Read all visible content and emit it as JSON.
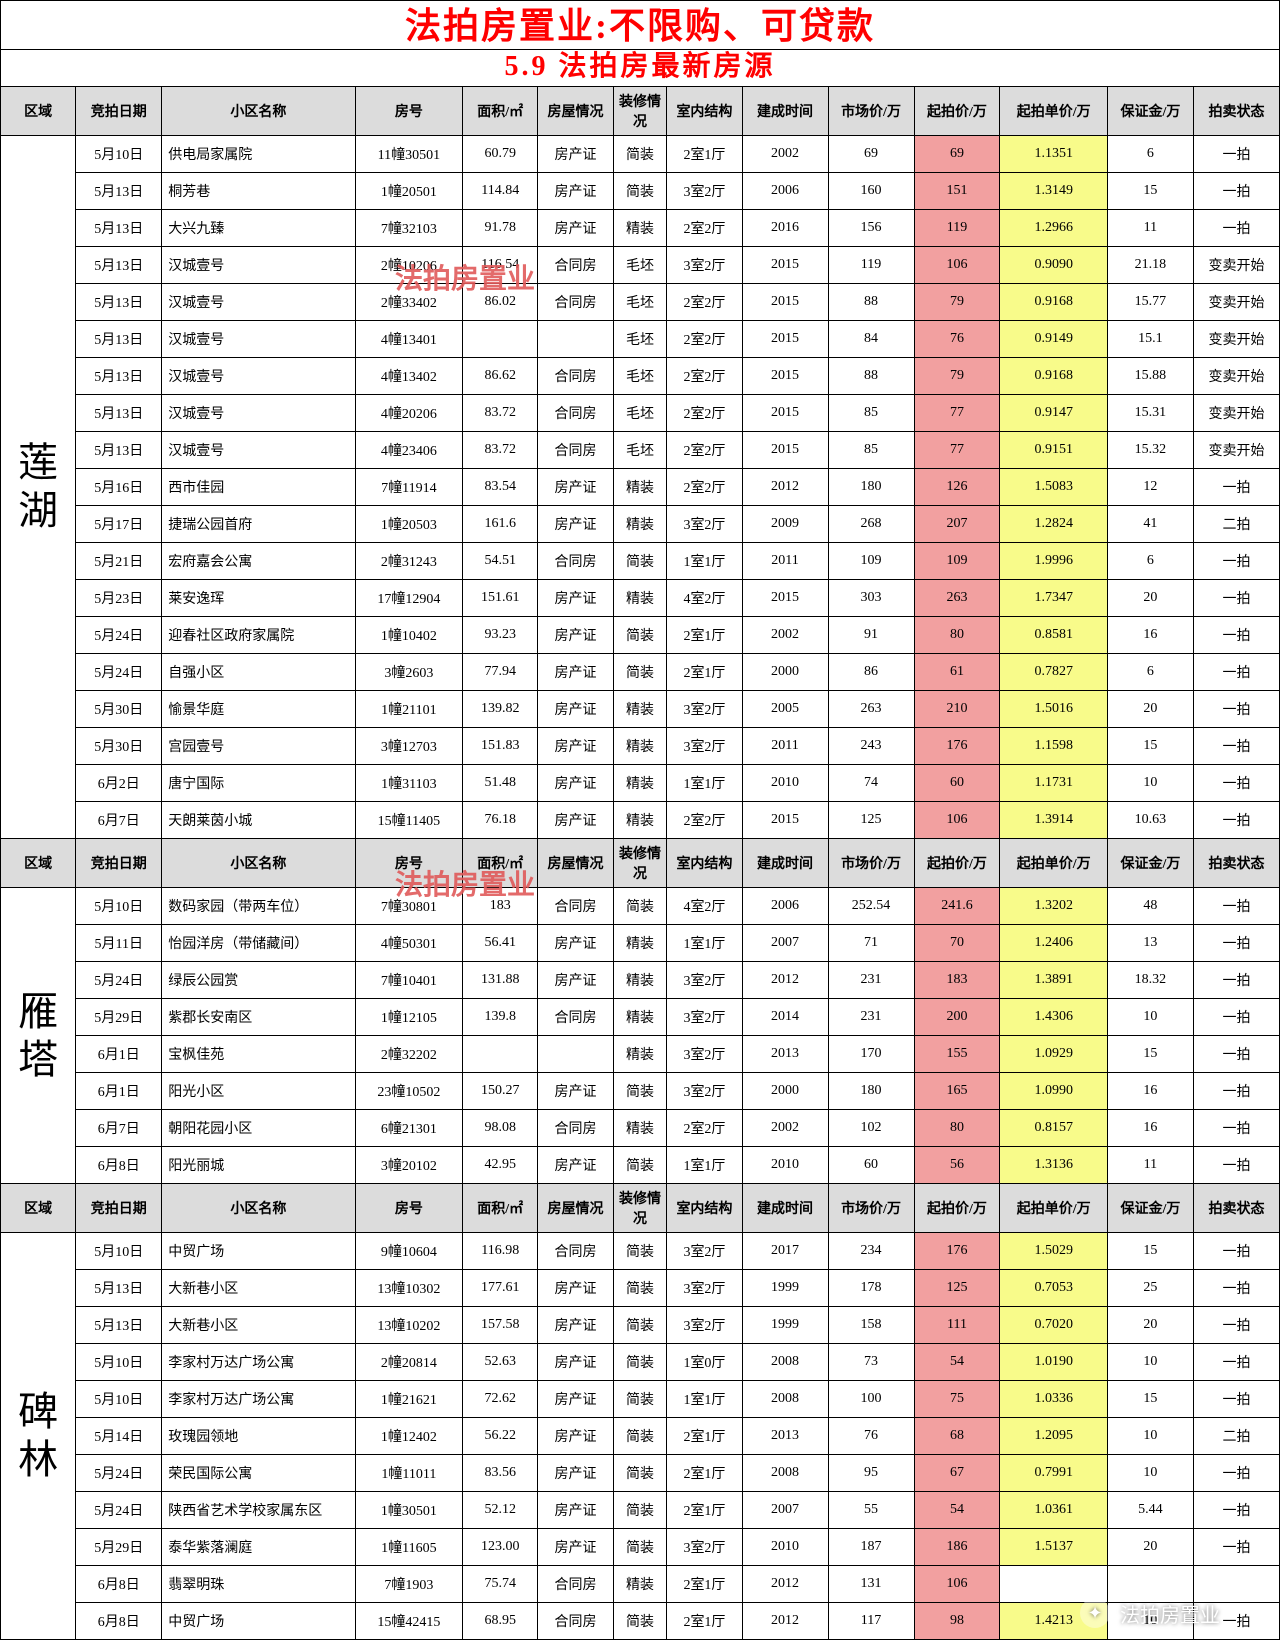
{
  "title": "法拍房置业:不限购、可贷款",
  "subtitle": "5.9  法拍房最新房源",
  "watermark": "法拍房置业",
  "footer": "法拍房置业",
  "colors": {
    "title": "#ff0000",
    "header_bg": "#dcdcdc",
    "highlight_red": "#f2a0a0",
    "highlight_yellow": "#f8fb8a"
  },
  "headers": {
    "region": "区域",
    "date": "竞拍日期",
    "name": "小区名称",
    "room": "房号",
    "area": "面积/㎡",
    "house": "房屋情况",
    "deco": "装修情况",
    "struct": "室内结构",
    "built": "建成时间",
    "market": "市场价/万",
    "start": "起拍价/万",
    "unit": "起拍单价/万",
    "deposit": "保证金/万",
    "status": "拍卖状态"
  },
  "sections": [
    {
      "region": "莲湖",
      "rows": [
        {
          "date": "5月10日",
          "name": "供电局家属院",
          "room": "11幢30501",
          "area": "60.79",
          "house": "房产证",
          "deco": "简装",
          "struct": "2室1厅",
          "built": "2002",
          "market": "69",
          "start": "69",
          "unit": "1.1351",
          "deposit": "6",
          "status": "一拍"
        },
        {
          "date": "5月13日",
          "name": "桐芳巷",
          "room": "1幢20501",
          "area": "114.84",
          "house": "房产证",
          "deco": "简装",
          "struct": "3室2厅",
          "built": "2006",
          "market": "160",
          "start": "151",
          "unit": "1.3149",
          "deposit": "15",
          "status": "一拍"
        },
        {
          "date": "5月13日",
          "name": "大兴九臻",
          "room": "7幢32103",
          "area": "91.78",
          "house": "房产证",
          "deco": "精装",
          "struct": "2室2厅",
          "built": "2016",
          "market": "156",
          "start": "119",
          "unit": "1.2966",
          "deposit": "11",
          "status": "一拍"
        },
        {
          "date": "5月13日",
          "name": "汉城壹号",
          "room": "2幢10206",
          "area": "116.54",
          "house": "合同房",
          "deco": "毛坯",
          "struct": "3室2厅",
          "built": "2015",
          "market": "119",
          "start": "106",
          "unit": "0.9090",
          "deposit": "21.18",
          "status": "变卖开始"
        },
        {
          "date": "5月13日",
          "name": "汉城壹号",
          "room": "2幢33402",
          "area": "86.02",
          "house": "合同房",
          "deco": "毛坯",
          "struct": "2室2厅",
          "built": "2015",
          "market": "88",
          "start": "79",
          "unit": "0.9168",
          "deposit": "15.77",
          "status": "变卖开始"
        },
        {
          "date": "5月13日",
          "name": "汉城壹号",
          "room": "4幢13401",
          "area": "",
          "house": "",
          "deco": "毛坯",
          "struct": "2室2厅",
          "built": "2015",
          "market": "84",
          "start": "76",
          "unit": "0.9149",
          "deposit": "15.1",
          "status": "变卖开始"
        },
        {
          "date": "5月13日",
          "name": "汉城壹号",
          "room": "4幢13402",
          "area": "86.62",
          "house": "合同房",
          "deco": "毛坯",
          "struct": "2室2厅",
          "built": "2015",
          "market": "88",
          "start": "79",
          "unit": "0.9168",
          "deposit": "15.88",
          "status": "变卖开始"
        },
        {
          "date": "5月13日",
          "name": "汉城壹号",
          "room": "4幢20206",
          "area": "83.72",
          "house": "合同房",
          "deco": "毛坯",
          "struct": "2室2厅",
          "built": "2015",
          "market": "85",
          "start": "77",
          "unit": "0.9147",
          "deposit": "15.31",
          "status": "变卖开始"
        },
        {
          "date": "5月13日",
          "name": "汉城壹号",
          "room": "4幢23406",
          "area": "83.72",
          "house": "合同房",
          "deco": "毛坯",
          "struct": "2室2厅",
          "built": "2015",
          "market": "85",
          "start": "77",
          "unit": "0.9151",
          "deposit": "15.32",
          "status": "变卖开始"
        },
        {
          "date": "5月16日",
          "name": "西市佳园",
          "room": "7幢11914",
          "area": "83.54",
          "house": "房产证",
          "deco": "精装",
          "struct": "2室2厅",
          "built": "2012",
          "market": "180",
          "start": "126",
          "unit": "1.5083",
          "deposit": "12",
          "status": "一拍"
        },
        {
          "date": "5月17日",
          "name": "捷瑞公园首府",
          "room": "1幢20503",
          "area": "161.6",
          "house": "房产证",
          "deco": "精装",
          "struct": "3室2厅",
          "built": "2009",
          "market": "268",
          "start": "207",
          "unit": "1.2824",
          "deposit": "41",
          "status": "二拍"
        },
        {
          "date": "5月21日",
          "name": "宏府嘉会公寓",
          "room": "2幢31243",
          "area": "54.51",
          "house": "合同房",
          "deco": "简装",
          "struct": "1室1厅",
          "built": "2011",
          "market": "109",
          "start": "109",
          "unit": "1.9996",
          "deposit": "6",
          "status": "一拍"
        },
        {
          "date": "5月23日",
          "name": "莱安逸珲",
          "room": "17幢12904",
          "area": "151.61",
          "house": "房产证",
          "deco": "精装",
          "struct": "4室2厅",
          "built": "2015",
          "market": "303",
          "start": "263",
          "unit": "1.7347",
          "deposit": "20",
          "status": "一拍"
        },
        {
          "date": "5月24日",
          "name": "迎春社区政府家属院",
          "room": "1幢10402",
          "area": "93.23",
          "house": "房产证",
          "deco": "简装",
          "struct": "2室1厅",
          "built": "2002",
          "market": "91",
          "start": "80",
          "unit": "0.8581",
          "deposit": "16",
          "status": "一拍"
        },
        {
          "date": "5月24日",
          "name": "自强小区",
          "room": "3幢2603",
          "area": "77.94",
          "house": "房产证",
          "deco": "简装",
          "struct": "2室1厅",
          "built": "2000",
          "market": "86",
          "start": "61",
          "unit": "0.7827",
          "deposit": "6",
          "status": "一拍"
        },
        {
          "date": "5月30日",
          "name": "愉景华庭",
          "room": "1幢21101",
          "area": "139.82",
          "house": "房产证",
          "deco": "精装",
          "struct": "3室2厅",
          "built": "2005",
          "market": "263",
          "start": "210",
          "unit": "1.5016",
          "deposit": "20",
          "status": "一拍"
        },
        {
          "date": "5月30日",
          "name": "宫园壹号",
          "room": "3幢12703",
          "area": "151.83",
          "house": "房产证",
          "deco": "精装",
          "struct": "3室2厅",
          "built": "2011",
          "market": "243",
          "start": "176",
          "unit": "1.1598",
          "deposit": "15",
          "status": "一拍"
        },
        {
          "date": "6月2日",
          "name": "唐宁国际",
          "room": "1幢31103",
          "area": "51.48",
          "house": "房产证",
          "deco": "精装",
          "struct": "1室1厅",
          "built": "2010",
          "market": "74",
          "start": "60",
          "unit": "1.1731",
          "deposit": "10",
          "status": "一拍"
        },
        {
          "date": "6月7日",
          "name": "天朗莱茵小城",
          "room": "15幢11405",
          "area": "76.18",
          "house": "房产证",
          "deco": "精装",
          "struct": "2室2厅",
          "built": "2015",
          "market": "125",
          "start": "106",
          "unit": "1.3914",
          "deposit": "10.63",
          "status": "一拍"
        }
      ]
    },
    {
      "region": "雁塔",
      "rows": [
        {
          "date": "5月10日",
          "name": "数码家园（带两车位）",
          "room": "7幢30801",
          "area": "183",
          "house": "合同房",
          "deco": "简装",
          "struct": "4室2厅",
          "built": "2006",
          "market": "252.54",
          "start": "241.6",
          "unit": "1.3202",
          "deposit": "48",
          "status": "一拍"
        },
        {
          "date": "5月11日",
          "name": "怡园洋房（带储藏间）",
          "room": "4幢50301",
          "area": "56.41",
          "house": "房产证",
          "deco": "精装",
          "struct": "1室1厅",
          "built": "2007",
          "market": "71",
          "start": "70",
          "unit": "1.2406",
          "deposit": "13",
          "status": "一拍"
        },
        {
          "date": "5月24日",
          "name": "绿辰公园赏",
          "room": "7幢10401",
          "area": "131.88",
          "house": "房产证",
          "deco": "精装",
          "struct": "3室2厅",
          "built": "2012",
          "market": "231",
          "start": "183",
          "unit": "1.3891",
          "deposit": "18.32",
          "status": "一拍"
        },
        {
          "date": "5月29日",
          "name": "紫郡长安南区",
          "room": "1幢12105",
          "area": "139.8",
          "house": "合同房",
          "deco": "精装",
          "struct": "3室2厅",
          "built": "2014",
          "market": "231",
          "start": "200",
          "unit": "1.4306",
          "deposit": "10",
          "status": "一拍"
        },
        {
          "date": "6月1日",
          "name": "宝枫佳苑",
          "room": "2幢32202",
          "area": "",
          "house": "",
          "deco": "精装",
          "struct": "3室2厅",
          "built": "2013",
          "market": "170",
          "start": "155",
          "unit": "1.0929",
          "deposit": "15",
          "status": "一拍"
        },
        {
          "date": "6月1日",
          "name": "阳光小区",
          "room": "23幢10502",
          "area": "150.27",
          "house": "房产证",
          "deco": "简装",
          "struct": "3室2厅",
          "built": "2000",
          "market": "180",
          "start": "165",
          "unit": "1.0990",
          "deposit": "16",
          "status": "一拍"
        },
        {
          "date": "6月7日",
          "name": "朝阳花园小区",
          "room": "6幢21301",
          "area": "98.08",
          "house": "合同房",
          "deco": "精装",
          "struct": "2室2厅",
          "built": "2002",
          "market": "102",
          "start": "80",
          "unit": "0.8157",
          "deposit": "16",
          "status": "一拍"
        },
        {
          "date": "6月8日",
          "name": "阳光丽城",
          "room": "3幢20102",
          "area": "42.95",
          "house": "房产证",
          "deco": "简装",
          "struct": "1室1厅",
          "built": "2010",
          "market": "60",
          "start": "56",
          "unit": "1.3136",
          "deposit": "11",
          "status": "一拍"
        }
      ]
    },
    {
      "region": "碑林",
      "rows": [
        {
          "date": "5月10日",
          "name": "中贸广场",
          "room": "9幢10604",
          "area": "116.98",
          "house": "合同房",
          "deco": "简装",
          "struct": "3室2厅",
          "built": "2017",
          "market": "234",
          "start": "176",
          "unit": "1.5029",
          "deposit": "15",
          "status": "一拍"
        },
        {
          "date": "5月13日",
          "name": "大新巷小区",
          "room": "13幢10302",
          "area": "177.61",
          "house": "房产证",
          "deco": "简装",
          "struct": "3室2厅",
          "built": "1999",
          "market": "178",
          "start": "125",
          "unit": "0.7053",
          "deposit": "25",
          "status": "一拍"
        },
        {
          "date": "5月13日",
          "name": "大新巷小区",
          "room": "13幢10202",
          "area": "157.58",
          "house": "房产证",
          "deco": "简装",
          "struct": "3室2厅",
          "built": "1999",
          "market": "158",
          "start": "111",
          "unit": "0.7020",
          "deposit": "20",
          "status": "一拍"
        },
        {
          "date": "5月10日",
          "name": "李家村万达广场公寓",
          "room": "2幢20814",
          "area": "52.63",
          "house": "房产证",
          "deco": "简装",
          "struct": "1室0厅",
          "built": "2008",
          "market": "73",
          "start": "54",
          "unit": "1.0190",
          "deposit": "10",
          "status": "一拍"
        },
        {
          "date": "5月10日",
          "name": "李家村万达广场公寓",
          "room": "1幢21621",
          "area": "72.62",
          "house": "房产证",
          "deco": "简装",
          "struct": "1室1厅",
          "built": "2008",
          "market": "100",
          "start": "75",
          "unit": "1.0336",
          "deposit": "15",
          "status": "一拍"
        },
        {
          "date": "5月14日",
          "name": "玫瑰园领地",
          "room": "1幢12402",
          "area": "56.22",
          "house": "房产证",
          "deco": "简装",
          "struct": "2室1厅",
          "built": "2013",
          "market": "76",
          "start": "68",
          "unit": "1.2095",
          "deposit": "10",
          "status": "二拍"
        },
        {
          "date": "5月24日",
          "name": "荣民国际公寓",
          "room": "1幢11011",
          "area": "83.56",
          "house": "房产证",
          "deco": "简装",
          "struct": "2室1厅",
          "built": "2008",
          "market": "95",
          "start": "67",
          "unit": "0.7991",
          "deposit": "10",
          "status": "一拍"
        },
        {
          "date": "5月24日",
          "name": "陕西省艺术学校家属东区",
          "room": "1幢30501",
          "area": "52.12",
          "house": "房产证",
          "deco": "简装",
          "struct": "2室1厅",
          "built": "2007",
          "market": "55",
          "start": "54",
          "unit": "1.0361",
          "deposit": "5.44",
          "status": "一拍"
        },
        {
          "date": "5月29日",
          "name": "泰华紫落澜庭",
          "room": "1幢11605",
          "area": "123.00",
          "house": "房产证",
          "deco": "简装",
          "struct": "3室2厅",
          "built": "2010",
          "market": "187",
          "start": "186",
          "unit": "1.5137",
          "deposit": "20",
          "status": "一拍"
        },
        {
          "date": "6月8日",
          "name": "翡翠明珠",
          "room": "7幢1903",
          "area": "75.74",
          "house": "合同房",
          "deco": "精装",
          "struct": "2室1厅",
          "built": "2012",
          "market": "131",
          "start": "106",
          "unit": "",
          "deposit": "",
          "status": ""
        },
        {
          "date": "6月8日",
          "name": "中贸广场",
          "room": "15幢42415",
          "area": "68.95",
          "house": "合同房",
          "deco": "简装",
          "struct": "2室1厅",
          "built": "2012",
          "market": "117",
          "start": "98",
          "unit": "1.4213",
          "deposit": "10",
          "status": "一拍"
        }
      ]
    }
  ]
}
